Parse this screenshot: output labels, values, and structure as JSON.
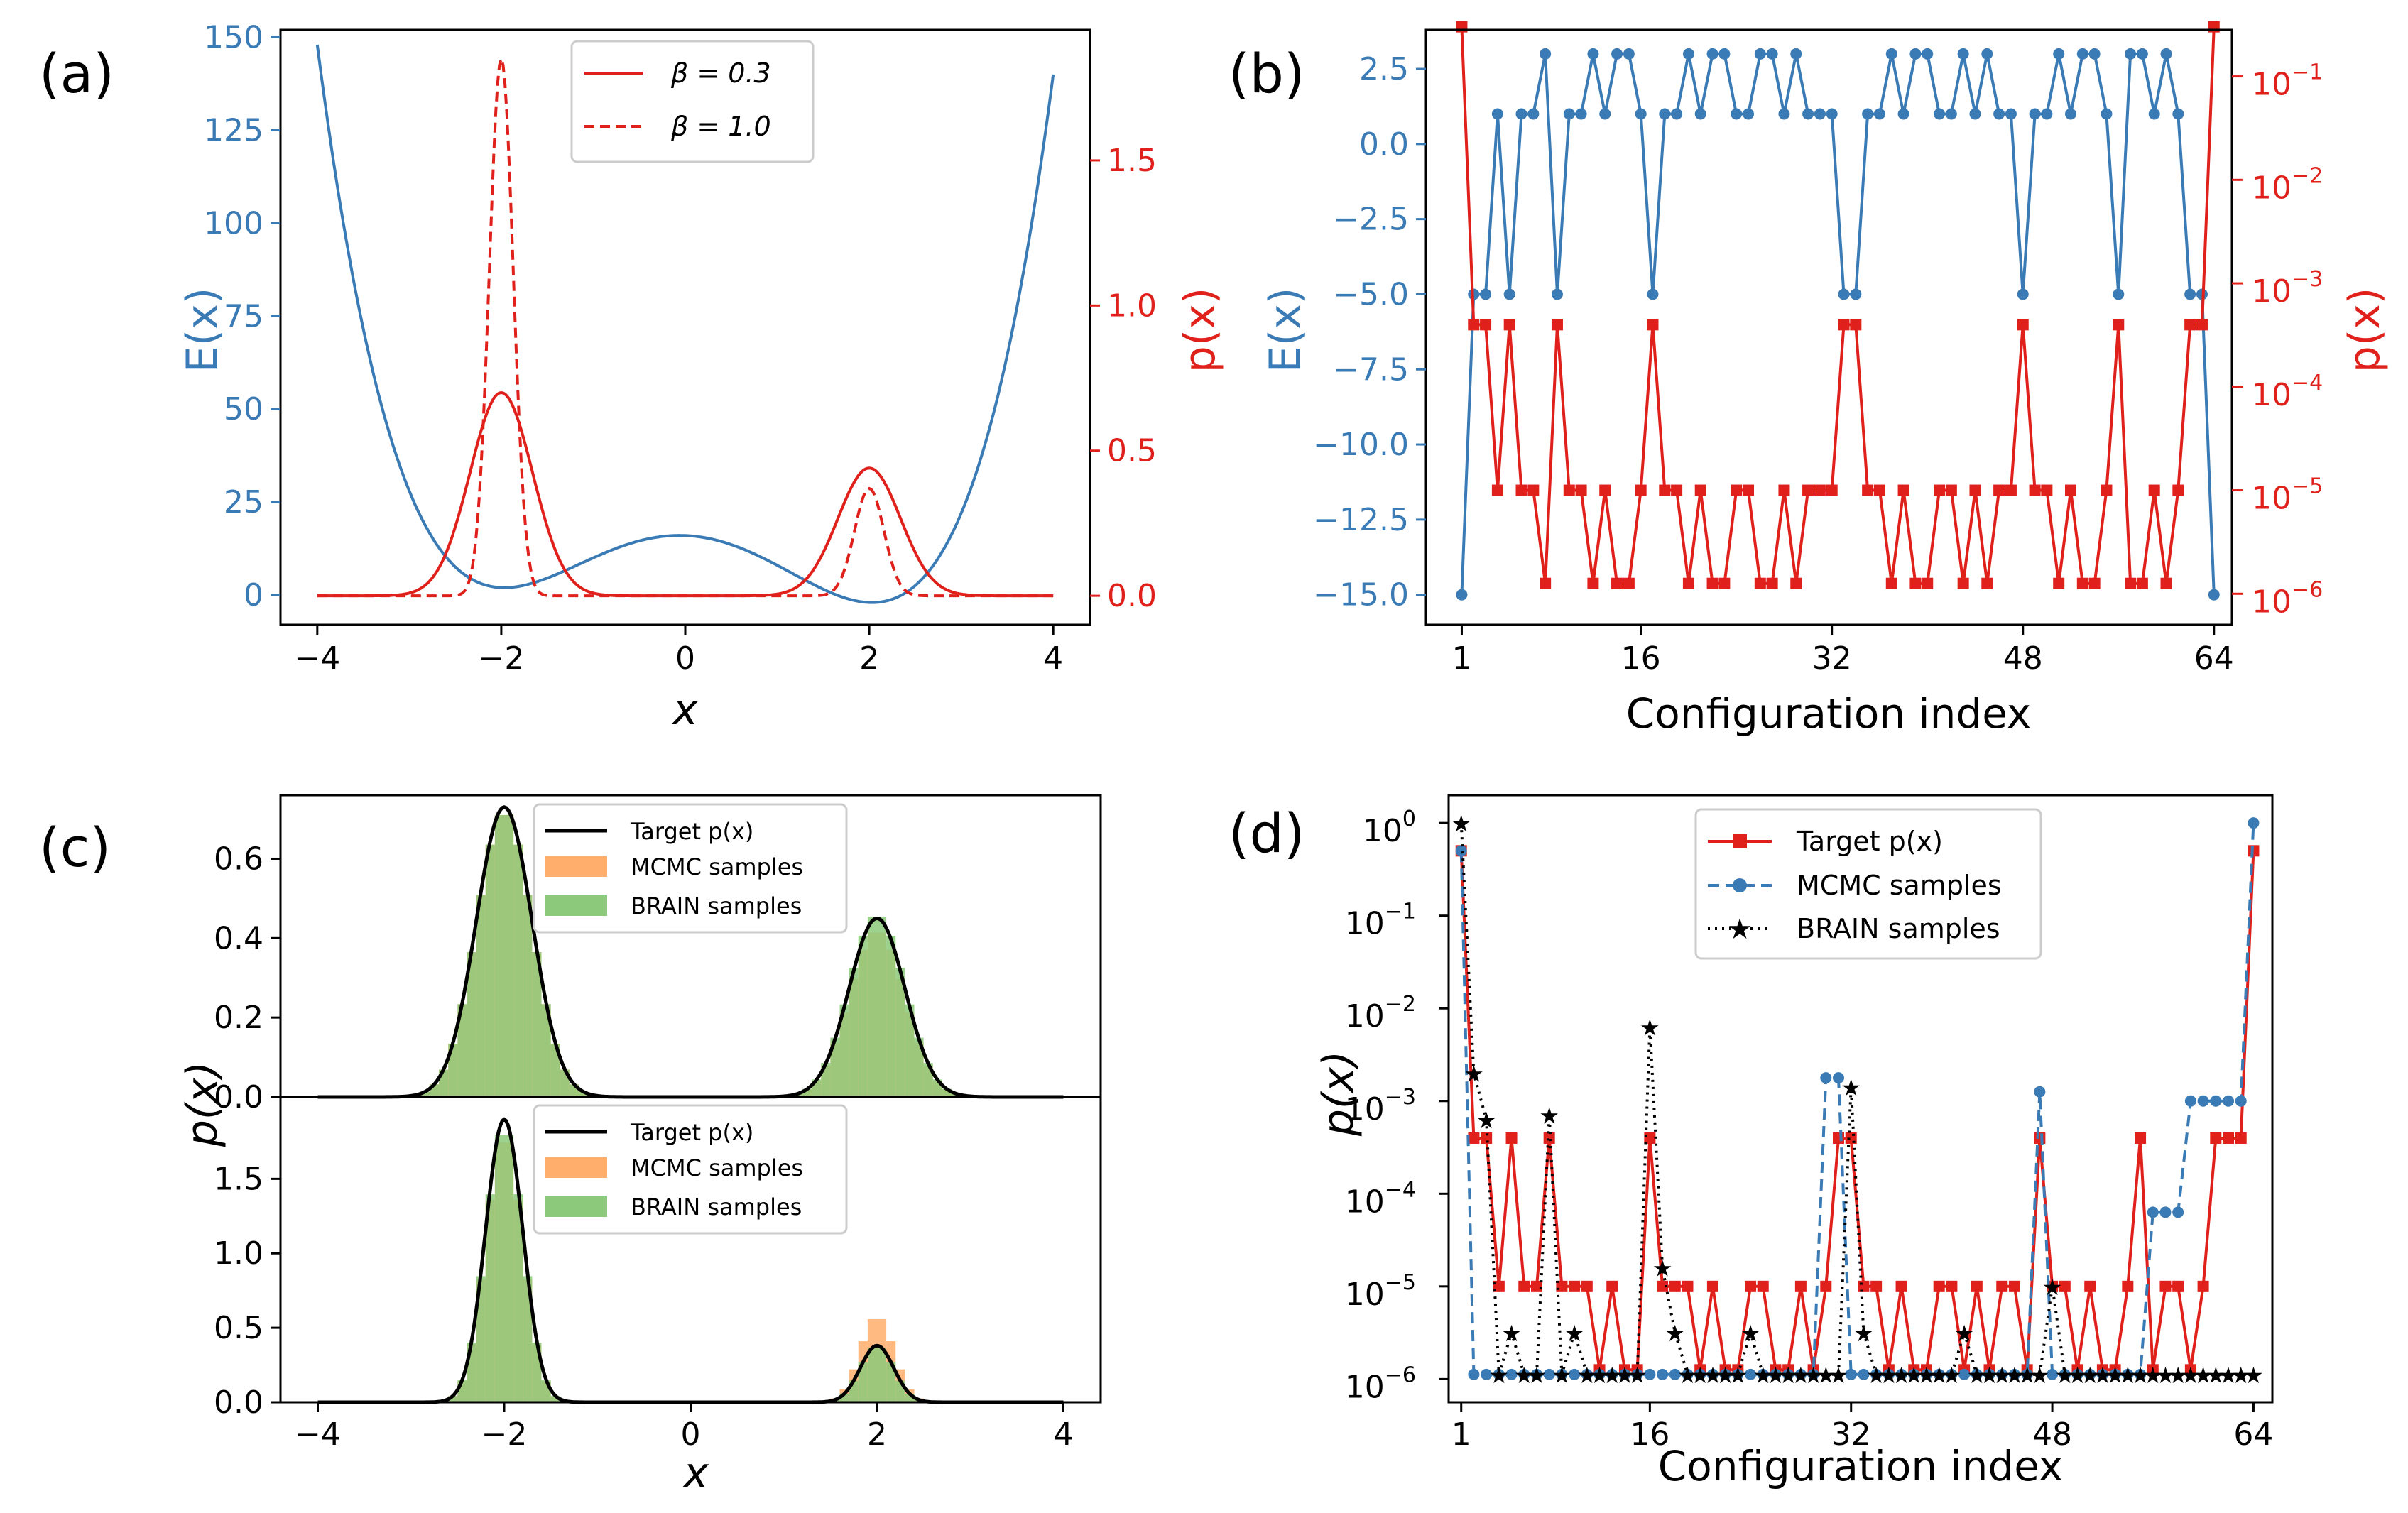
{
  "colors": {
    "blue": "#3a7bb5",
    "red": "#e0201b",
    "black": "#000000",
    "orange": "#ffae6b",
    "green": "#8cc97a"
  },
  "chart_data": [
    {
      "panel": "(a)",
      "type": "line",
      "xlabel": "x",
      "ylabel_left": "E(x)",
      "ylabel_right": "p(x)",
      "xlim": [
        -4.4,
        4.4
      ],
      "ylim_left": [
        -8,
        152
      ],
      "ylim_right": [
        -0.1,
        1.95
      ],
      "xticks": [
        "−4",
        "−2",
        "0",
        "2",
        "4"
      ],
      "yticks_left": [
        "0",
        "25",
        "50",
        "75",
        "100",
        "125",
        "150"
      ],
      "yticks_right": [
        "0.0",
        "0.5",
        "1.0",
        "1.5"
      ],
      "energy": {
        "function": "x^4 - 8x^2 - x + 16",
        "x_range": [
          -4,
          4
        ],
        "minima": [
          [
            -2,
            -0.5
          ],
          [
            2,
            1.5
          ]
        ],
        "barrier": [
          0,
          16
        ]
      },
      "legend": [
        {
          "label": "β = 0.3",
          "style": "solid"
        },
        {
          "label": "β = 1.0",
          "style": "dashed"
        }
      ],
      "series": [
        {
          "name": "β = 0.3",
          "peaks": [
            [
              -2.0,
              0.7
            ],
            [
              2.0,
              0.44
            ]
          ]
        },
        {
          "name": "β = 1.0",
          "peaks": [
            [
              -2.0,
              1.85
            ],
            [
              2.0,
              0.37
            ]
          ]
        }
      ]
    },
    {
      "panel": "(b)",
      "type": "line",
      "xlabel": "Configuration index",
      "ylabel_left": "E(x)",
      "ylabel_right": "p(x)",
      "xticks": [
        "1",
        "16",
        "32",
        "48",
        "64"
      ],
      "yticks_left": [
        "2.5",
        "0.0",
        "−2.5",
        "−5.0",
        "−7.5",
        "−10.0",
        "−12.5",
        "−15.0"
      ],
      "yticks_right": [
        "10",
        "10",
        "10",
        "10",
        "10",
        "10"
      ],
      "yticks_right_exp": [
        "−1",
        "−2",
        "−3",
        "−4",
        "−5",
        "−6"
      ],
      "ylim_left": [
        -16,
        3.8
      ],
      "yscale_right": "log",
      "energy_values": [
        -15,
        -5,
        -5,
        1,
        -5,
        1,
        1,
        3,
        -5,
        1,
        1,
        3,
        1,
        3,
        3,
        1,
        -5,
        1,
        1,
        3,
        1,
        3,
        3,
        1,
        1,
        3,
        3,
        1,
        3,
        1,
        1,
        -1,
        -5,
        -5,
        1,
        1,
        3,
        1,
        3,
        3,
        1,
        1,
        3,
        1,
        3,
        1,
        1,
        -5,
        1,
        1,
        3,
        1,
        3,
        3,
        1,
        -5,
        3,
        3,
        1,
        3,
        1,
        -5,
        -5,
        -15
      ]
    },
    {
      "panel": "(c)",
      "type": "histogram",
      "xlabel": "x",
      "ylabel": "p(x)",
      "xticks": [
        "−4",
        "−2",
        "0",
        "2",
        "4"
      ],
      "top": {
        "yticks": [
          "0.0",
          "0.2",
          "0.4",
          "0.6"
        ],
        "ylim": [
          0,
          0.76
        ],
        "target_peaks": [
          [
            -2.0,
            0.73,
            0.3
          ],
          [
            2.0,
            0.45,
            0.3
          ]
        ],
        "mcmc_peaks": [
          [
            -2.0,
            0.72
          ],
          [
            2.0,
            0.42
          ]
        ],
        "brain_peaks": [
          [
            -2.0,
            0.72
          ],
          [
            2.0,
            0.46
          ]
        ]
      },
      "bottom": {
        "yticks": [
          "0.0",
          "0.5",
          "1.0",
          "1.5"
        ],
        "ylim": [
          0,
          2.05
        ],
        "target_peaks": [
          [
            -2.0,
            1.9,
            0.2
          ],
          [
            2.0,
            0.38,
            0.18
          ]
        ],
        "mcmc_peaks": [
          [
            -2.0,
            1.8
          ],
          [
            2.0,
            0.58
          ]
        ],
        "brain_peaks": [
          [
            -2.0,
            1.85
          ],
          [
            2.0,
            0.38
          ]
        ]
      },
      "legend": [
        "Target p(x)",
        "MCMC samples",
        "BRAIN samples"
      ]
    },
    {
      "panel": "(d)",
      "type": "line",
      "xlabel": "Configuration index",
      "ylabel": "p(x)",
      "yscale": "log",
      "xticks": [
        "1",
        "16",
        "32",
        "48",
        "64"
      ],
      "yticks": [
        "10",
        "10",
        "10",
        "10",
        "10",
        "10",
        "10"
      ],
      "yticks_exp": [
        "0",
        "−1",
        "−2",
        "−3",
        "−4",
        "−5",
        "−6"
      ],
      "legend": [
        "Target p(x)",
        "MCMC samples",
        "BRAIN samples"
      ]
    }
  ]
}
